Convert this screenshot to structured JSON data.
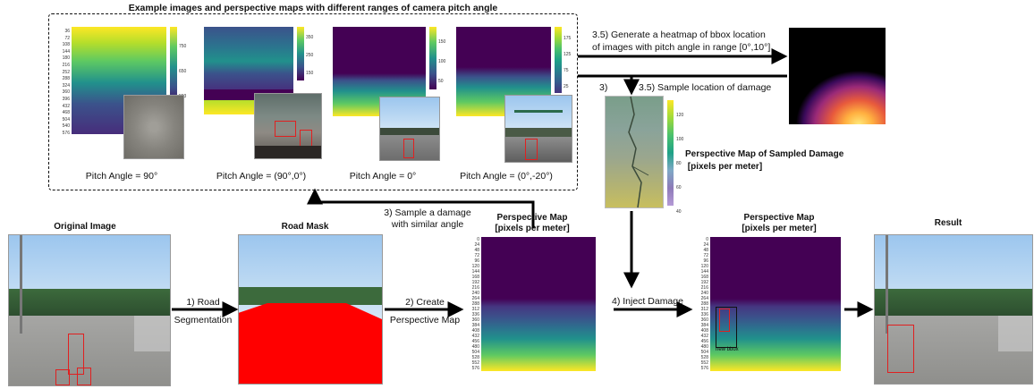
{
  "top_panel": {
    "title": "Example images and perspective maps with different ranges of camera pitch angle",
    "examples": [
      {
        "pitch_label": "Pitch  Angle = 90°"
      },
      {
        "pitch_label": "Pitch  Angle = (90°,0°)"
      },
      {
        "pitch_label": "Pitch  Angle = 0°"
      },
      {
        "pitch_label": "Pitch  Angle = (0°,-20°)"
      }
    ],
    "colorbar_ticks": [
      [
        "750",
        "650",
        "553"
      ],
      [
        "350",
        "250",
        "150"
      ],
      [
        "150",
        "100",
        "50"
      ],
      [
        "175",
        "125",
        "75",
        "25"
      ]
    ]
  },
  "bottom_panels": {
    "original": "Original Image",
    "road_mask": "Road Mask",
    "perspective_map_1": "Perspective Map\n[pixels per meter]",
    "perspective_map_2": "Perspective Map\n[pixels per meter]",
    "result": "Result"
  },
  "steps": {
    "road_seg": "1) Road\nSegmentation",
    "create_map": "2) Create\nPerspective Map",
    "sample_damage": "3) Sample a damage\nwith similar angle",
    "inject": "4) Inject Damage",
    "heatmap": "3.5) Generate a heatmap of bbox location\nof images with pitch angle in range [0°,10°]",
    "sample_location": "3.5) Sample location of damage",
    "step3_short": "3)"
  },
  "sampled_damage": {
    "caption": "Perspective Map of Sampled Damage\n [pixels per meter]",
    "cb_ticks": [
      "120",
      "100",
      "80",
      "60",
      "40"
    ]
  },
  "map_y_ticks": [
    "0",
    "24",
    "48",
    "72",
    "96",
    "120",
    "144",
    "168",
    "192",
    "216",
    "240",
    "264",
    "288",
    "312",
    "336",
    "360",
    "384",
    "408",
    "432",
    "456",
    "480",
    "504",
    "528",
    "552",
    "576"
  ],
  "bbox_label": "new bbox",
  "colors": {
    "viridis_top": "#440154",
    "viridis_bottom": "#fde725",
    "road_mask": "#ff0000",
    "box": "#e02020"
  }
}
